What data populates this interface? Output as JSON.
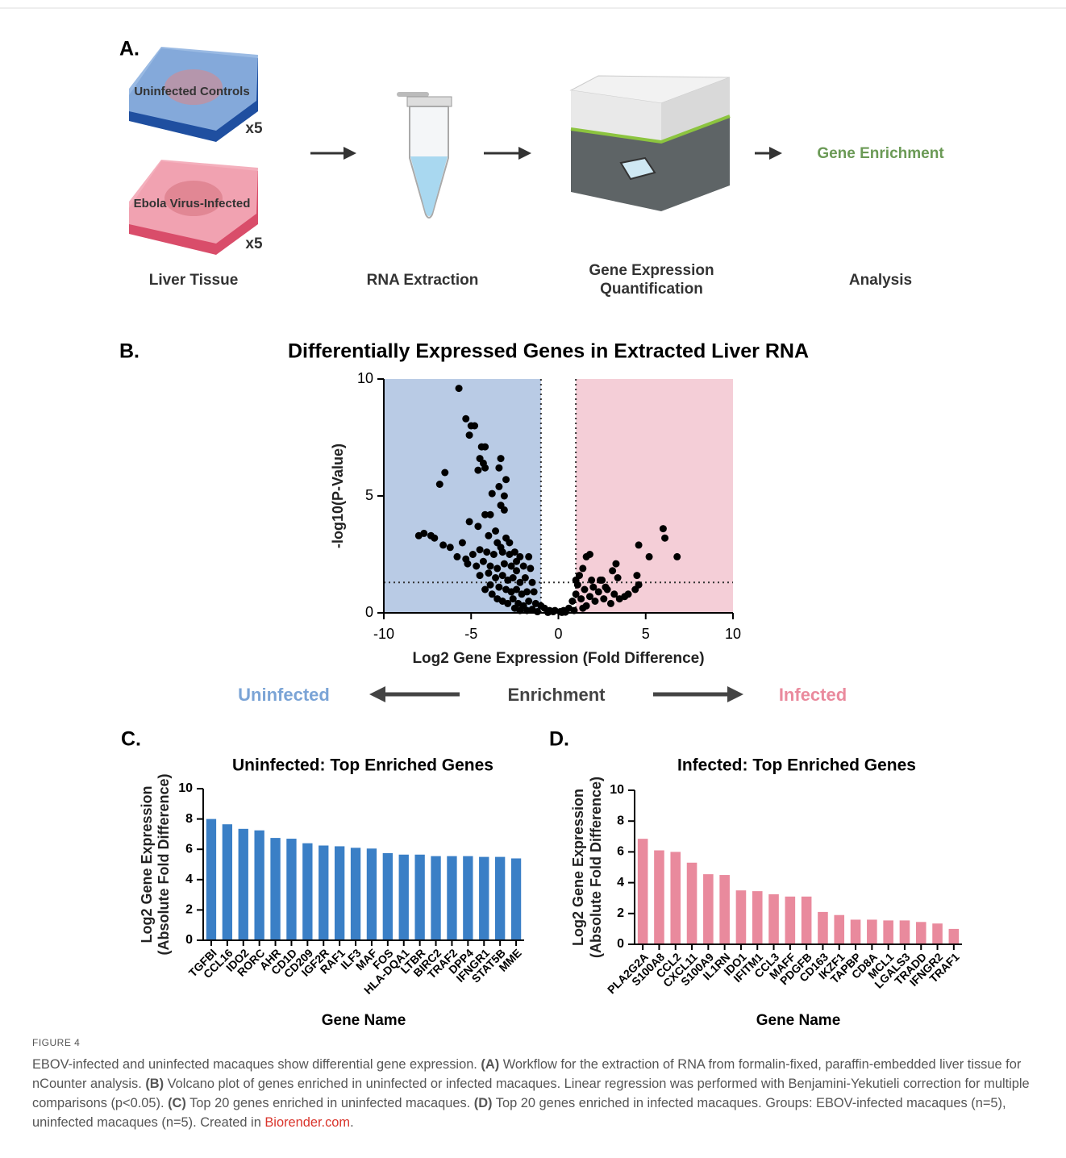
{
  "panel_labels": {
    "A": "A.",
    "B": "B.",
    "C": "C.",
    "D": "D."
  },
  "workflow": {
    "uninfected_label": "Uninfected Controls",
    "uninfected_count": "x5",
    "infected_label": "Ebola Virus-Infected",
    "infected_count": "x5",
    "result": "Gene Enrichment",
    "steps": [
      "Liver Tissue",
      "RNA Extraction",
      "Gene Expression Quantification",
      "Analysis"
    ]
  },
  "chart_data": [
    {
      "type": "scatter",
      "title": "Differentially Expressed Genes in Extracted Liver RNA",
      "xlabel": "Log2 Gene Expression (Fold Difference)",
      "ylabel": "-log10(P-Value)",
      "xlim": [
        -10,
        10
      ],
      "xticks": [
        -10,
        -5,
        0,
        5,
        10
      ],
      "ylim": [
        0,
        10
      ],
      "yticks": [
        0,
        5,
        10
      ],
      "grid": false,
      "color": "#000000",
      "regions": [
        {
          "x": [
            -10,
            -1
          ],
          "color": "#b9cbe5"
        },
        {
          "x": [
            1,
            10
          ],
          "color": "#f4ced7"
        }
      ],
      "threshold_lines": {
        "x": [
          -1,
          1
        ],
        "y": 1.3
      },
      "x": [
        -5.7,
        -5.3,
        -5.0,
        -4.8,
        -5.1,
        -4.4,
        -4.2,
        -4.5,
        -4.3,
        -4.6,
        -4.2,
        -3.3,
        -3.4,
        -3.0,
        -3.8,
        -3.4,
        -3.1,
        -3.3,
        -3.1,
        -6.5,
        -6.8,
        -4.2,
        -3.9,
        -5.1,
        -4.6,
        -3.0,
        -3.5,
        -4.0,
        -8.0,
        -7.7,
        -7.3,
        -7.1,
        -6.6,
        -6.2,
        -5.5,
        -5.8,
        -5.3,
        -4.9,
        -4.5,
        -4.1,
        -3.7,
        -3.2,
        -2.8,
        -2.5,
        -2.2,
        -2.0,
        -5.2,
        -4.7,
        -4.3,
        -3.9,
        -3.5,
        -3.1,
        -2.7,
        -2.4,
        -1.7,
        -1.6,
        -4.5,
        -4.0,
        -3.6,
        -3.2,
        -2.9,
        -2.6,
        -2.2,
        -1.9,
        -1.5,
        -3.9,
        -3.4,
        -3.0,
        -2.7,
        -2.4,
        -2.1,
        -1.8,
        -1.4,
        -4.2,
        -3.8,
        -3.5,
        -3.2,
        -2.9,
        -2.6,
        -2.3,
        -2.0,
        -1.7,
        -1.3,
        -1.0,
        -0.8,
        -0.5,
        -0.3,
        -1.8,
        -1.5,
        -1.2,
        -2.5,
        -2.2,
        -3.3,
        -3.6,
        -2.8,
        -2.4,
        -0.2,
        0.1,
        0.3,
        0.6,
        0.9,
        0.2,
        0.4,
        -0.6,
        0.8,
        1.0,
        1.1,
        1.3,
        1.5,
        1.6,
        1.8,
        2.0,
        2.1,
        2.3,
        2.5,
        2.6,
        2.8,
        3.0,
        3.2,
        3.5,
        3.8,
        4.0,
        4.4,
        4.6,
        1.2,
        1.4,
        1.6,
        1.8,
        2.4,
        3.1,
        3.3,
        3.4,
        4.5,
        4.6,
        5.2,
        6.0,
        6.1,
        6.8,
        1.0,
        1.9,
        2.7,
        1.4
      ],
      "values": [
        9.6,
        8.3,
        8.0,
        8.0,
        7.6,
        7.1,
        7.1,
        6.6,
        6.4,
        6.1,
        6.2,
        6.6,
        6.2,
        5.7,
        5.1,
        5.4,
        5.0,
        4.6,
        4.4,
        6.0,
        5.5,
        4.2,
        4.2,
        3.9,
        3.7,
        3.2,
        3.0,
        3.3,
        3.3,
        3.4,
        3.3,
        3.2,
        2.9,
        2.8,
        3.0,
        2.4,
        2.3,
        2.5,
        2.7,
        2.6,
        2.5,
        2.6,
        2.5,
        2.6,
        2.4,
        2.0,
        2.1,
        2.0,
        2.2,
        2.0,
        1.9,
        2.1,
        2.0,
        1.8,
        2.4,
        1.9,
        1.6,
        1.7,
        1.5,
        1.6,
        1.4,
        1.5,
        1.3,
        1.5,
        1.3,
        1.2,
        1.1,
        1.0,
        0.9,
        1.0,
        0.8,
        0.9,
        0.9,
        1.0,
        0.8,
        0.6,
        0.5,
        0.4,
        0.6,
        0.4,
        0.3,
        0.5,
        0.4,
        0.3,
        0.2,
        0.1,
        0.05,
        0.1,
        0.15,
        0.05,
        0.2,
        0.1,
        2.8,
        3.5,
        3.0,
        2.2,
        0.1,
        0.05,
        0.1,
        0.2,
        0.1,
        0.02,
        0.03,
        0.02,
        0.5,
        0.8,
        1.2,
        0.6,
        1.0,
        0.3,
        0.7,
        1.1,
        0.5,
        0.9,
        1.4,
        0.6,
        1.0,
        0.4,
        0.8,
        0.6,
        0.7,
        0.8,
        1.0,
        1.2,
        1.6,
        1.9,
        2.4,
        2.5,
        1.4,
        1.8,
        2.1,
        1.5,
        1.6,
        2.9,
        2.4,
        3.6,
        3.2,
        2.4,
        1.4,
        1.4,
        1.1,
        0.2
      ]
    },
    {
      "type": "bar",
      "title": "Uninfected: Top Enriched Genes",
      "xlabel": "Gene Name",
      "ylabel": [
        "Log2 Gene Expression",
        "(Absolute Fold Difference)"
      ],
      "categories": [
        "TGFBI",
        "CCL16",
        "IDO2",
        "RORC",
        "AHR",
        "CD1D",
        "CD209",
        "IGF2R",
        "RAF1",
        "ILF3",
        "MAF",
        "FOS",
        "HLA-DQA1",
        "LTBR",
        "BIRC2",
        "TRAF2",
        "DPP4",
        "IFNGR1",
        "STAT5B",
        "MME"
      ],
      "values": [
        8.0,
        7.65,
        7.35,
        7.25,
        6.75,
        6.7,
        6.4,
        6.25,
        6.2,
        6.1,
        6.05,
        5.75,
        5.65,
        5.65,
        5.55,
        5.55,
        5.55,
        5.5,
        5.5,
        5.4
      ],
      "color": "#3a7fc6",
      "ylim": [
        0,
        10
      ],
      "yticks": [
        0,
        2,
        4,
        6,
        8,
        10
      ],
      "grid": false
    },
    {
      "type": "bar",
      "title": "Infected: Top Enriched Genes",
      "xlabel": "Gene Name",
      "ylabel": [
        "Log2 Gene Expression",
        "(Absolute Fold Difference)"
      ],
      "categories": [
        "PLA2G2A",
        "S100A8",
        "CCL2",
        "CXCL11",
        "S100A9",
        "IL1RN",
        "IDO1",
        "IFITM1",
        "CCL3",
        "MAFF",
        "PDGFB",
        "CD163",
        "IKZF1",
        "TAPBP",
        "CD8A",
        "MCL1",
        "LGALS3",
        "TRADD",
        "IFNGR2",
        "TRAF1"
      ],
      "values": [
        6.85,
        6.1,
        6.0,
        5.3,
        4.55,
        4.5,
        3.5,
        3.45,
        3.25,
        3.1,
        3.1,
        2.1,
        1.9,
        1.6,
        1.6,
        1.55,
        1.55,
        1.45,
        1.35,
        1.0
      ],
      "color": "#e98a9d",
      "ylim": [
        0,
        10
      ],
      "yticks": [
        0,
        2,
        4,
        6,
        8,
        10
      ],
      "grid": false
    }
  ],
  "enrichment": {
    "left": "Uninfected",
    "center": "Enrichment",
    "right": "Infected"
  },
  "caption": {
    "label": "FIGURE 4",
    "parts": [
      "EBOV-infected and uninfected macaques show differential gene expression. ",
      "(A)",
      " Workflow for the extraction of RNA from formalin-fixed, paraffin-embedded liver tissue for nCounter analysis. ",
      "(B)",
      " Volcano plot of genes enriched in uninfected or infected macaques. Linear regression was performed with Benjamini-Yekutieli correction for multiple comparisons (p<0.05). ",
      "(C)",
      " Top 20 genes enriched in uninfected macaques. ",
      "(D)",
      " Top 20 genes enriched in infected macaques. Groups: EBOV-infected macaques (n=5), uninfected macaques (n=5). Created in ",
      "Biorender.com",
      "."
    ]
  }
}
